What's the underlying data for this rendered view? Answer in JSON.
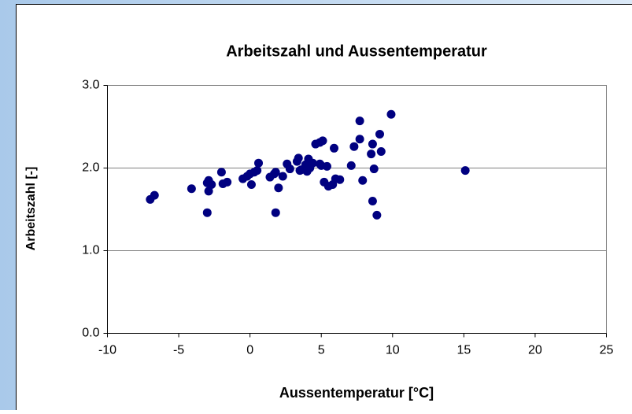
{
  "chart_data": {
    "type": "scatter",
    "title": "Arbeitszahl und Aussentemperatur",
    "xlabel": "Aussentemperatur [°C]",
    "ylabel": "Arbeitszahl [-]",
    "color": "#000080",
    "x": [
      -7.0,
      -6.7,
      -4.1,
      -3.0,
      -3.0,
      -2.9,
      -2.9,
      -2.7,
      -2.0,
      -1.9,
      -1.6,
      -0.5,
      -0.2,
      0.0,
      0.1,
      0.3,
      0.5,
      0.6,
      1.4,
      1.7,
      1.8,
      1.8,
      2.0,
      2.3,
      2.6,
      2.8,
      3.3,
      3.4,
      3.5,
      3.6,
      3.9,
      4.0,
      4.1,
      4.2,
      4.4,
      4.6,
      4.9,
      5.1,
      4.9,
      5.0,
      5.2,
      5.4,
      5.5,
      5.8,
      5.9,
      6.0,
      6.3,
      7.1,
      7.3,
      7.7,
      7.7,
      7.9,
      8.5,
      8.6,
      8.6,
      8.7,
      8.9,
      9.1,
      9.2,
      9.9,
      15.1
    ],
    "values": [
      1.62,
      1.67,
      1.75,
      1.46,
      1.82,
      1.85,
      1.72,
      1.8,
      1.95,
      1.81,
      1.83,
      1.87,
      1.9,
      1.93,
      1.8,
      1.95,
      1.97,
      2.06,
      1.89,
      1.93,
      1.46,
      1.95,
      1.76,
      1.9,
      2.05,
      1.99,
      2.08,
      2.12,
      1.97,
      1.98,
      2.04,
      1.96,
      2.11,
      2.0,
      2.06,
      2.29,
      2.31,
      2.33,
      2.05,
      2.03,
      1.83,
      2.02,
      1.78,
      1.8,
      2.24,
      1.87,
      1.86,
      2.03,
      2.26,
      2.57,
      2.35,
      1.85,
      2.17,
      2.29,
      1.6,
      1.99,
      1.43,
      2.41,
      2.2,
      2.65,
      1.97
    ],
    "xlim": [
      -10,
      25
    ],
    "xticks": [
      -10,
      -5,
      0,
      5,
      10,
      15,
      20,
      25
    ],
    "ylim": [
      0,
      3
    ],
    "yticks": [
      {
        "value": 0,
        "label": "0.0"
      },
      {
        "value": 1,
        "label": "1.0"
      },
      {
        "value": 2,
        "label": "2.0"
      },
      {
        "value": 3,
        "label": "3.0"
      }
    ],
    "grid": true
  }
}
